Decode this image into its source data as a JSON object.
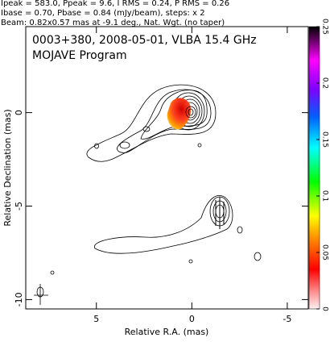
{
  "chart_data": {
    "type": "contour",
    "header": [
      "Ipeak = 583.0, Ppeak = 9.6, I RMS = 0.24, P RMS = 0.26",
      "Ibase = 0.70, Pbase = 0.84 (mJy/beam), steps: x 2",
      "Beam: 0.82x0.57 mas at -9.1 deg., Nat. Wgt. (no taper)"
    ],
    "title": "0003+380, 2008-05-01, VLBA 15.4 GHz",
    "subtitle": "MOJAVE Program",
    "xlabel": "Relative R.A. (mas)",
    "ylabel": "Relative Declination (mas)",
    "xlim": [
      8.7,
      -6.1
    ],
    "ylim": [
      -10.5,
      4.6
    ],
    "xticks": [
      5,
      0,
      -5
    ],
    "yticks": [
      0,
      -5,
      -10
    ],
    "colorbar": {
      "lim": [
        0,
        0.25
      ],
      "ticks": [
        0,
        0.05,
        0.1,
        0.15,
        0.2,
        0.25
      ]
    }
  }
}
